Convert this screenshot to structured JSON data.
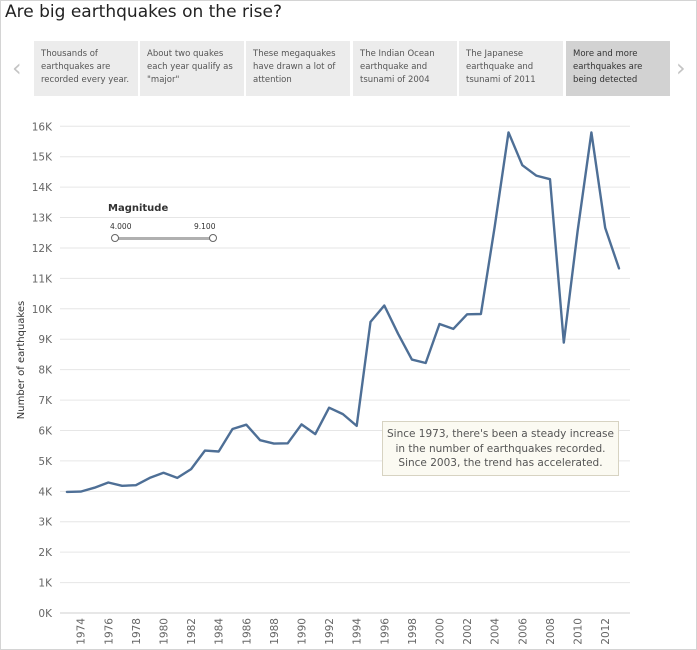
{
  "page": {
    "title": "Are big earthquakes on the rise?"
  },
  "story": {
    "prev_icon": "chevron-left-icon",
    "next_icon": "chevron-right-icon",
    "prev_glyph": "‹",
    "next_glyph": "›",
    "points": [
      {
        "text": "Thousands of earthquakes are recorded every year."
      },
      {
        "text": "About two quakes each year qualify as \"major\""
      },
      {
        "text": "These megaquakes have drawn a lot of attention"
      },
      {
        "text": "The Indian Ocean earthquake and tsunami of 2004"
      },
      {
        "text": "The Japanese earthquake and tsunami of 2011"
      },
      {
        "text": "More and more earthquakes are being detected"
      }
    ]
  },
  "filter": {
    "title": "Magnitude",
    "min_label": "4.000",
    "max_label": "9.100",
    "min": 4.0,
    "max": 9.1
  },
  "annotation": {
    "line1": "Since 1973, there's been a steady increase",
    "line2": "in the number of earthquakes recorded.",
    "line3": "Since 2003, the trend has accelerated."
  },
  "chart_data": {
    "type": "line",
    "title": "Are big earthquakes on the rise?",
    "xlabel": "",
    "ylabel": "Number of earthquakes",
    "x": [
      1973,
      1974,
      1975,
      1976,
      1977,
      1978,
      1979,
      1980,
      1981,
      1982,
      1983,
      1984,
      1985,
      1986,
      1987,
      1988,
      1989,
      1990,
      1991,
      1992,
      1993,
      1994,
      1995,
      1996,
      1997,
      1998,
      1999,
      2000,
      2001,
      2002,
      2003,
      2004,
      2005,
      2006,
      2007,
      2008,
      2009,
      2010,
      2011,
      2012,
      2013
    ],
    "series": [
      {
        "name": "Number of earthquakes",
        "color": "#4e6f96",
        "values": [
          3980,
          3990,
          4120,
          4290,
          4180,
          4200,
          4440,
          4610,
          4440,
          4730,
          5340,
          5310,
          6050,
          6190,
          5680,
          5570,
          5580,
          6200,
          5880,
          6750,
          6540,
          6150,
          9570,
          10110,
          9180,
          8330,
          8220,
          9500,
          9340,
          9820,
          9830,
          12700,
          15800,
          14720,
          14380,
          14260,
          8890,
          12550,
          15800,
          12660,
          11330
        ]
      }
    ],
    "y_ticks": [
      0,
      1000,
      2000,
      3000,
      4000,
      5000,
      6000,
      7000,
      8000,
      9000,
      10000,
      11000,
      12000,
      13000,
      14000,
      15000,
      16000
    ],
    "y_tick_labels": [
      "0K",
      "1K",
      "2K",
      "3K",
      "4K",
      "5K",
      "6K",
      "7K",
      "8K",
      "9K",
      "10K",
      "11K",
      "12K",
      "13K",
      "14K",
      "15K",
      "16K"
    ],
    "x_ticks": [
      1974,
      1976,
      1978,
      1980,
      1982,
      1984,
      1986,
      1988,
      1990,
      1992,
      1994,
      1996,
      1998,
      2000,
      2002,
      2004,
      2006,
      2008,
      2010,
      2012
    ],
    "ylim": [
      0,
      16700
    ],
    "xlim": [
      1972.5,
      2013.8
    ],
    "grid": true
  }
}
